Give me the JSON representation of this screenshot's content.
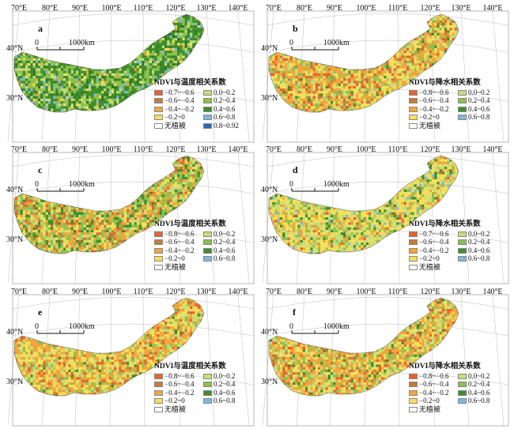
{
  "lon_labels": [
    "70°E",
    "80°E",
    "90°E",
    "100°E",
    "110°E",
    "120°E",
    "130°E",
    "140°E"
  ],
  "lat_labels": [
    "40°N",
    "30°N"
  ],
  "scale_bar": {
    "zero": "0",
    "dist": "1000km"
  },
  "no_veg_color": "#ffffff",
  "panels": [
    {
      "letter": "a",
      "legend_title": "NDVI与温度相关系数",
      "colormode": "green",
      "items": [
        {
          "label": "−0.7~−0.6",
          "color": "#e8622c"
        },
        {
          "label": "0.0~0.2",
          "color": "#c7dc7a"
        },
        {
          "label": "−0.6~−0.4",
          "color": "#c77b3a"
        },
        {
          "label": "0.2~0.4",
          "color": "#8cc04d"
        },
        {
          "label": "−0.4~−0.2",
          "color": "#f0a63a"
        },
        {
          "label": "0.4~0.6",
          "color": "#3f8d2c"
        },
        {
          "label": "−0.2~0",
          "color": "#f5e05a"
        },
        {
          "label": "0.6~0.8",
          "color": "#7fb8d8"
        },
        {
          "label": "无植被",
          "color": "#ffffff"
        },
        {
          "label": "0.8~0.92",
          "color": "#2f65b0"
        }
      ]
    },
    {
      "letter": "b",
      "legend_title": "NDVI与降水相关系数",
      "colormode": "orange",
      "items": [
        {
          "label": "−0.8~−0.6",
          "color": "#e8622c"
        },
        {
          "label": "0.0~0.2",
          "color": "#c7dc7a"
        },
        {
          "label": "−0.6~−0.4",
          "color": "#c77b3a"
        },
        {
          "label": "0.2~0.4",
          "color": "#8cc04d"
        },
        {
          "label": "−0.4~−0.2",
          "color": "#f0a63a"
        },
        {
          "label": "0.4~0.6",
          "color": "#3f8d2c"
        },
        {
          "label": "−0.2~0",
          "color": "#f5e05a"
        },
        {
          "label": "0.6~0.8",
          "color": "#7fb8d8"
        },
        {
          "label": "无植被",
          "color": "#ffffff"
        }
      ]
    },
    {
      "letter": "c",
      "legend_title": "NDVI与温度相关系数",
      "colormode": "mixed",
      "items": [
        {
          "label": "−0.8~−0.6",
          "color": "#e8622c"
        },
        {
          "label": "0.0~0.2",
          "color": "#c7dc7a"
        },
        {
          "label": "−0.6~−0.4",
          "color": "#c77b3a"
        },
        {
          "label": "0.2~0.4",
          "color": "#8cc04d"
        },
        {
          "label": "−0.4~−0.2",
          "color": "#f0a63a"
        },
        {
          "label": "0.4~0.6",
          "color": "#3f8d2c"
        },
        {
          "label": "−0.2~0",
          "color": "#f5e05a"
        },
        {
          "label": "0.6~0.8",
          "color": "#7fb8d8"
        },
        {
          "label": "无植被",
          "color": "#ffffff"
        }
      ]
    },
    {
      "letter": "d",
      "legend_title": "NDVI与降水相关系数",
      "colormode": "yellow",
      "items": [
        {
          "label": "−0.7~−0.6",
          "color": "#e8622c"
        },
        {
          "label": "0.0~0.2",
          "color": "#c7dc7a"
        },
        {
          "label": "−0.6~−0.4",
          "color": "#c77b3a"
        },
        {
          "label": "0.2~0.4",
          "color": "#8cc04d"
        },
        {
          "label": "−0.4~−0.2",
          "color": "#f0a63a"
        },
        {
          "label": "0.4~0.6",
          "color": "#3f8d2c"
        },
        {
          "label": "−0.2~0",
          "color": "#f5e05a"
        },
        {
          "label": "0.6~0.8",
          "color": "#7fb8d8"
        },
        {
          "label": "无植被",
          "color": "#ffffff"
        }
      ]
    },
    {
      "letter": "e",
      "legend_title": "NDVI与温度相关系数",
      "colormode": "orange",
      "items": [
        {
          "label": "−0.8~−0.6",
          "color": "#e8622c"
        },
        {
          "label": "0.0~0.2",
          "color": "#c7dc7a"
        },
        {
          "label": "−0.6~−0.4",
          "color": "#c77b3a"
        },
        {
          "label": "0.2~0.4",
          "color": "#8cc04d"
        },
        {
          "label": "−0.4~−0.2",
          "color": "#f0a63a"
        },
        {
          "label": "0.4~0.6",
          "color": "#3f8d2c"
        },
        {
          "label": "−0.2~0",
          "color": "#f5e05a"
        },
        {
          "label": "0.6~0.8",
          "color": "#7fb8d8"
        },
        {
          "label": "无植被",
          "color": "#ffffff"
        }
      ]
    },
    {
      "letter": "f",
      "legend_title": "NDVI与降水相关系数",
      "colormode": "orange2",
      "items": [
        {
          "label": "−0.8~−0.6",
          "color": "#e8622c"
        },
        {
          "label": "0.0~0.2",
          "color": "#c7dc7a"
        },
        {
          "label": "−0.6~−0.4",
          "color": "#c77b3a"
        },
        {
          "label": "0.2~0.4",
          "color": "#8cc04d"
        },
        {
          "label": "−0.4~−0.2",
          "color": "#f0a63a"
        },
        {
          "label": "0.4~0.6",
          "color": "#3f8d2c"
        },
        {
          "label": "−0.2~0",
          "color": "#f5e05a"
        },
        {
          "label": "0.6~0.8",
          "color": "#7fb8d8"
        },
        {
          "label": "无植被",
          "color": "#ffffff"
        }
      ]
    }
  ]
}
